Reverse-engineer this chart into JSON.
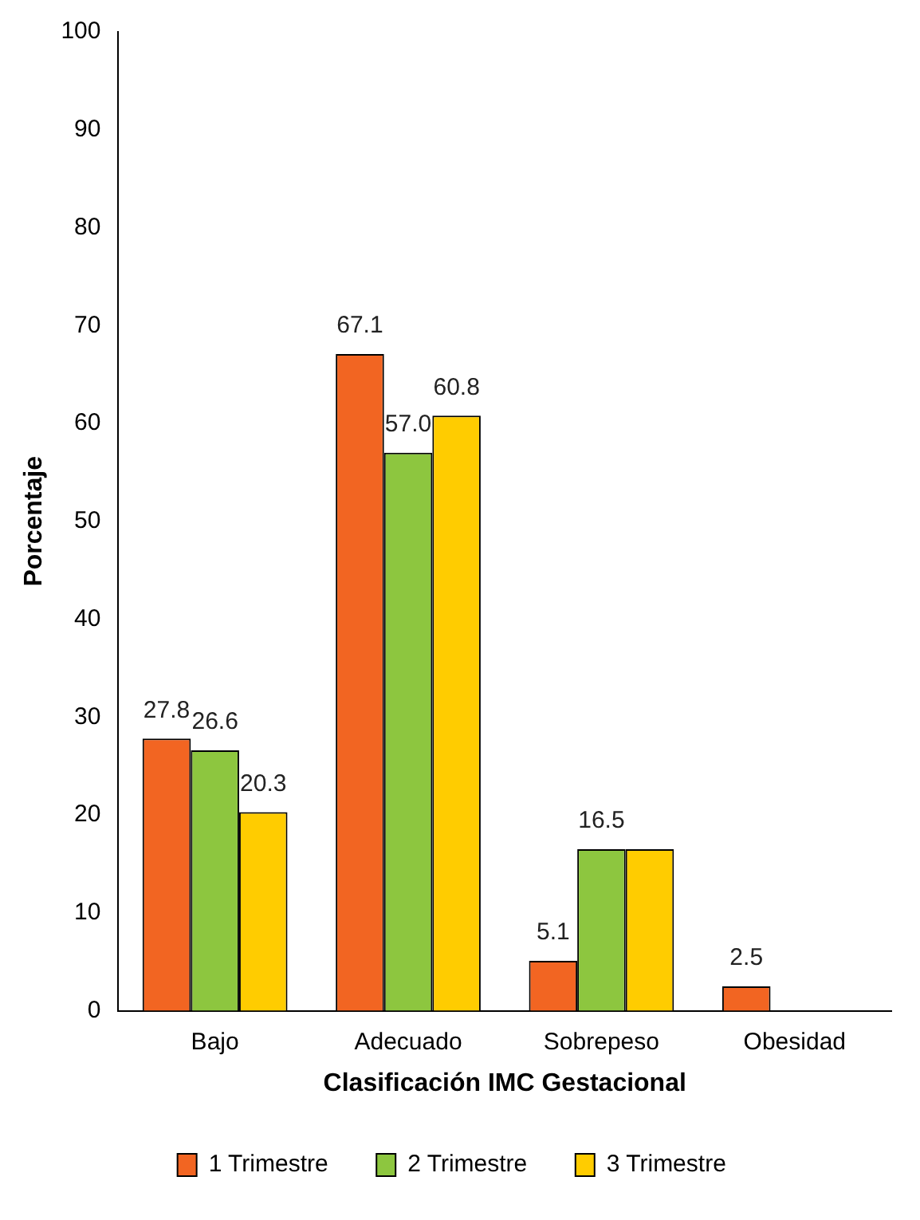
{
  "chart_data": {
    "type": "bar",
    "xlabel": "Clasificación IMC Gestacional",
    "ylabel": "Porcentaje",
    "categories": [
      "Bajo",
      "Adecuado",
      "Sobrepeso",
      "Obesidad"
    ],
    "series": [
      {
        "name": "1 Trimestre",
        "color": "#f26522",
        "values": [
          27.8,
          67.1,
          5.1,
          2.5
        ],
        "value_labels": [
          "27.8",
          "67.1",
          "5.1",
          "2.5"
        ]
      },
      {
        "name": "2 Trimestre",
        "color": "#8dc63f",
        "values": [
          26.6,
          57.0,
          16.5,
          null
        ],
        "value_labels": [
          "26.6",
          "57.0",
          "16.5",
          null
        ]
      },
      {
        "name": "3 Trimestre",
        "color": "#ffcc00",
        "values": [
          20.3,
          60.8,
          16.5,
          null
        ],
        "value_labels": [
          "20.3",
          "60.8",
          null,
          null
        ]
      }
    ],
    "ylim": [
      0,
      100
    ],
    "yticks": [
      0,
      10,
      20,
      30,
      40,
      50,
      60,
      70,
      80,
      90,
      100
    ],
    "grid": false,
    "legend": "bottom"
  }
}
